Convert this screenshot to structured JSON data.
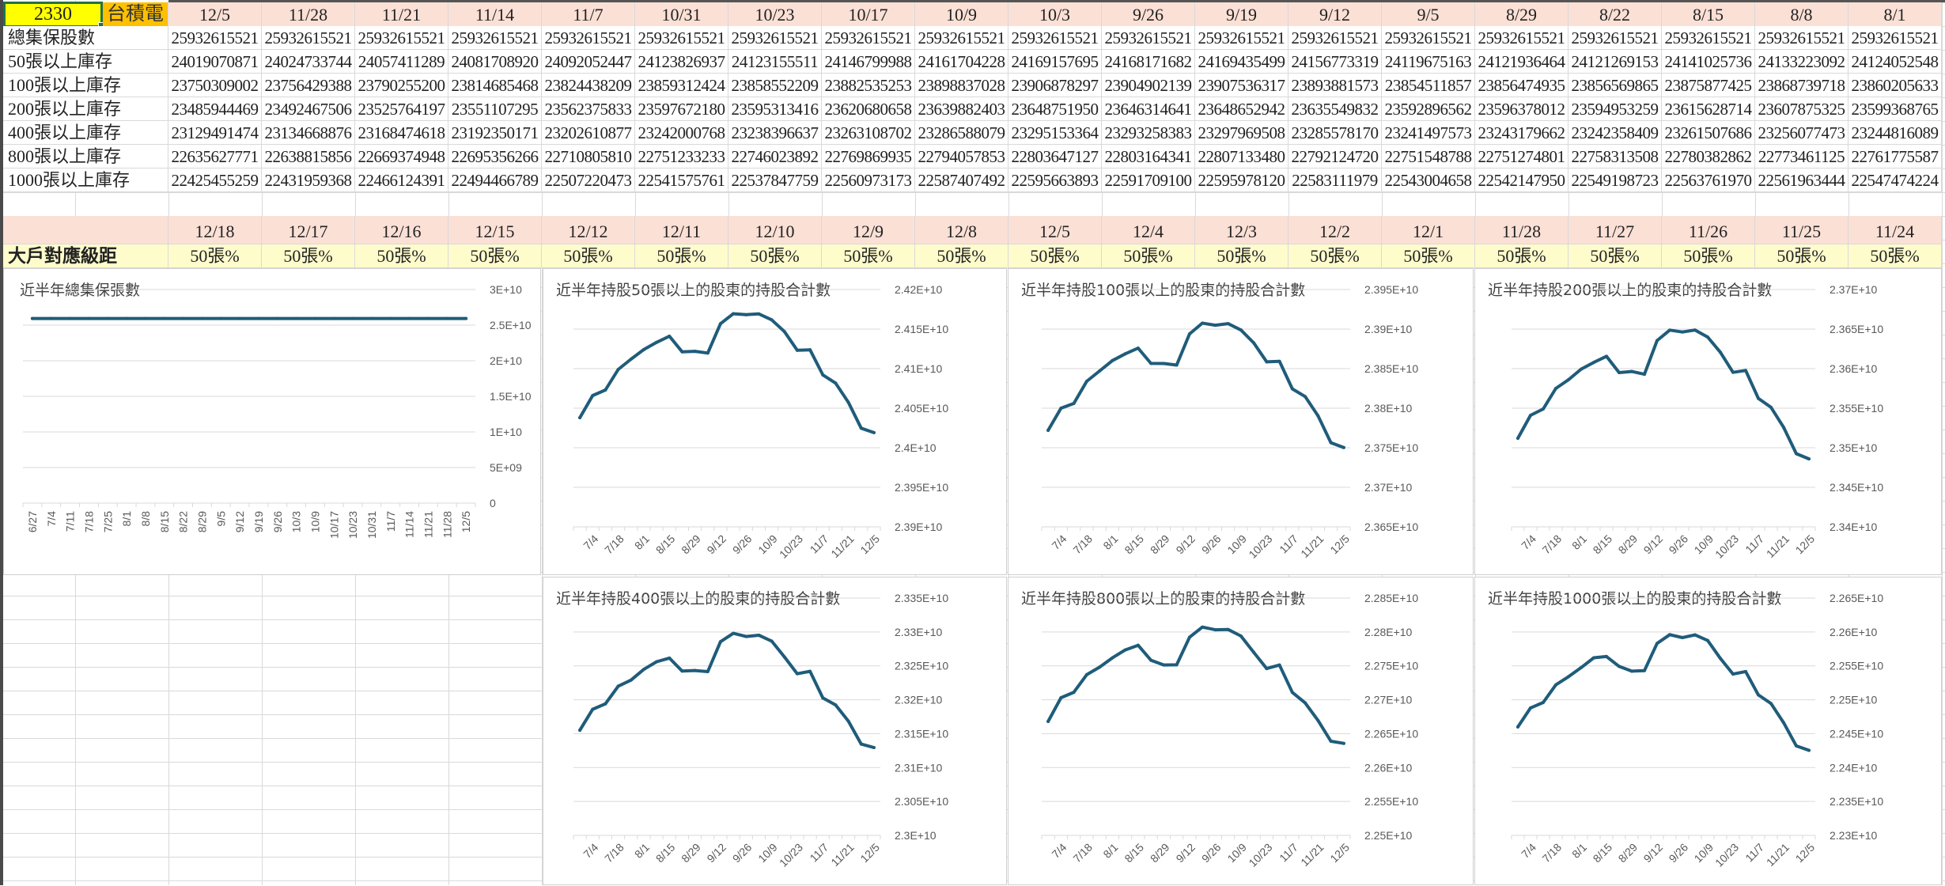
{
  "header": {
    "ticker": "2330",
    "name": "台積電"
  },
  "weekly_table": {
    "dates": [
      "12/5",
      "11/28",
      "11/21",
      "11/14",
      "11/7",
      "10/31",
      "10/23",
      "10/17",
      "10/9",
      "10/3",
      "9/26",
      "9/19",
      "9/12",
      "9/5",
      "8/29",
      "8/22",
      "8/15",
      "8/8",
      "8/1"
    ],
    "rows": [
      {
        "label": "總集保股數",
        "values": [
          "25932615521",
          "25932615521",
          "25932615521",
          "25932615521",
          "25932615521",
          "25932615521",
          "25932615521",
          "25932615521",
          "25932615521",
          "25932615521",
          "25932615521",
          "25932615521",
          "25932615521",
          "25932615521",
          "25932615521",
          "25932615521",
          "25932615521",
          "25932615521",
          "25932615521"
        ]
      },
      {
        "label": "50張以上庫存",
        "values": [
          "24019070871",
          "24024733744",
          "24057411289",
          "24081708920",
          "24092052447",
          "24123826937",
          "24123155511",
          "24146799988",
          "24161704228",
          "24169157695",
          "24168171682",
          "24169435499",
          "24156773319",
          "24119675163",
          "24121936464",
          "24121269153",
          "24141025736",
          "24133223092",
          "24124052548"
        ]
      },
      {
        "label": "100張以上庫存",
        "values": [
          "23750309002",
          "23756429388",
          "23790255200",
          "23814685468",
          "23824438209",
          "23859312424",
          "23858552209",
          "23882535253",
          "23898837028",
          "23906878297",
          "23904902139",
          "23907536317",
          "23893881573",
          "23854511857",
          "23856474935",
          "23856569865",
          "23875877425",
          "23868739718",
          "23860205633"
        ]
      },
      {
        "label": "200張以上庫存",
        "values": [
          "23485944469",
          "23492467506",
          "23525764197",
          "23551107295",
          "23562375833",
          "23597672180",
          "23595313416",
          "23620680658",
          "23639882403",
          "23648751950",
          "23646314641",
          "23648652942",
          "23635549832",
          "23592896562",
          "23596378012",
          "23594953259",
          "23615628714",
          "23607875325",
          "23599368765"
        ]
      },
      {
        "label": "400張以上庫存",
        "values": [
          "23129491474",
          "23134668876",
          "23168474618",
          "23192350171",
          "23202610877",
          "23242000768",
          "23238396637",
          "23263108702",
          "23286588079",
          "23295153364",
          "23293258383",
          "23297969508",
          "23285578170",
          "23241497573",
          "23243179662",
          "23242358409",
          "23261507686",
          "23256077473",
          "23244816089"
        ]
      },
      {
        "label": "800張以上庫存",
        "values": [
          "22635627771",
          "22638815856",
          "22669374948",
          "22695356266",
          "22710805810",
          "22751233233",
          "22746023892",
          "22769869935",
          "22794057853",
          "22803647127",
          "22803164341",
          "22807133480",
          "22792124720",
          "22751548788",
          "22751274801",
          "22758313508",
          "22780382862",
          "22773461125",
          "22761775587"
        ]
      },
      {
        "label": "1000張以上庫存",
        "values": [
          "22425455259",
          "22431959368",
          "22466124391",
          "22494466789",
          "22507220473",
          "22541575761",
          "22537847759",
          "22560973173",
          "22587407492",
          "22595663893",
          "22591709100",
          "22595978120",
          "22583111979",
          "22543004658",
          "22542147950",
          "22549198723",
          "22563761970",
          "22561963444",
          "22547474224"
        ]
      }
    ]
  },
  "daily_header": {
    "dates": [
      "12/18",
      "12/17",
      "12/16",
      "12/15",
      "12/12",
      "12/11",
      "12/10",
      "12/9",
      "12/8",
      "12/5",
      "12/4",
      "12/3",
      "12/2",
      "12/1",
      "11/28",
      "11/27",
      "11/26",
      "11/25",
      "11/24"
    ],
    "row_label": "大戶對應級距",
    "values": [
      "50張%",
      "50張%",
      "50張%",
      "50張%",
      "50張%",
      "50張%",
      "50張%",
      "50張%",
      "50張%",
      "50張%",
      "50張%",
      "50張%",
      "50張%",
      "50張%",
      "50張%",
      "50張%",
      "50張%",
      "50張%",
      "50張%"
    ]
  },
  "colors": {
    "line": "#1f5c7a",
    "date_header_bg": "#fbe0d6",
    "ticker_bg": "#ffff00",
    "name_bg": "#ffc000",
    "level_row_bg": "#fffccc"
  },
  "chart_data": [
    {
      "type": "line",
      "title": "近半年總集保張數",
      "categories": [
        "6/27",
        "7/4",
        "7/11",
        "7/18",
        "7/25",
        "8/1",
        "8/8",
        "8/15",
        "8/22",
        "8/29",
        "9/5",
        "9/12",
        "9/19",
        "9/26",
        "10/3",
        "10/9",
        "10/17",
        "10/23",
        "10/31",
        "11/7",
        "11/14",
        "11/21",
        "11/28",
        "12/5"
      ],
      "values": [
        25932615521,
        25932615521,
        25932615521,
        25932615521,
        25932615521,
        25932615521,
        25932615521,
        25932615521,
        25932615521,
        25932615521,
        25932615521,
        25932615521,
        25932615521,
        25932615521,
        25932615521,
        25932615521,
        25932615521,
        25932615521,
        25932615521,
        25932615521,
        25932615521,
        25932615521,
        25932615521,
        25932615521
      ],
      "ylim": [
        0,
        30000000000
      ],
      "yticks": [
        "3E+10",
        "2.5E+10",
        "2E+10",
        "1.5E+10",
        "1E+10",
        "5E+09",
        "0"
      ],
      "xtick_labels": [
        "6/27",
        "7/4",
        "7/11",
        "7/18",
        "7/25",
        "8/1",
        "8/8",
        "8/15",
        "8/22",
        "8/29",
        "9/5",
        "9/12",
        "9/19",
        "9/26",
        "10/3",
        "10/9",
        "10/17",
        "10/23",
        "10/31",
        "11/7",
        "11/14",
        "11/21",
        "11/28",
        "12/5"
      ],
      "grid": true,
      "legend": "none"
    },
    {
      "type": "line",
      "title": "近半年持股50張以上的股東的持股合計數",
      "categories": [
        "6/27",
        "7/4",
        "7/11",
        "7/18",
        "7/25",
        "8/1",
        "8/8",
        "8/15",
        "8/22",
        "8/29",
        "9/5",
        "9/12",
        "9/19",
        "9/26",
        "10/3",
        "10/9",
        "10/17",
        "10/23",
        "10/31",
        "11/7",
        "11/14",
        "11/21",
        "11/28",
        "12/5"
      ],
      "values": [
        24038000000,
        24066000000,
        24073000000,
        24099000000,
        24112000000,
        24124052548,
        24133223092,
        24141025736,
        24121269153,
        24121936464,
        24119675163,
        24156773319,
        24169435499,
        24168171682,
        24169157695,
        24161704228,
        24146799988,
        24123155511,
        24123826937,
        24092052447,
        24081708920,
        24057411289,
        24024733744,
        24019070871
      ],
      "ylim": [
        23900000000,
        24200000000
      ],
      "yticks": [
        "2.42E+10",
        "2.415E+10",
        "2.41E+10",
        "2.405E+10",
        "2.4E+10",
        "2.395E+10",
        "2.39E+10"
      ],
      "xtick_labels": [
        "7/4",
        "7/18",
        "8/1",
        "8/15",
        "8/29",
        "9/12",
        "9/26",
        "10/9",
        "10/23",
        "11/7",
        "11/21",
        "12/5"
      ],
      "grid": true,
      "legend": "none"
    },
    {
      "type": "line",
      "title": "近半年持股100張以上的股東的持股合計數",
      "categories": [
        "6/27",
        "7/4",
        "7/11",
        "7/18",
        "7/25",
        "8/1",
        "8/8",
        "8/15",
        "8/22",
        "8/29",
        "9/5",
        "9/12",
        "9/19",
        "9/26",
        "10/3",
        "10/9",
        "10/17",
        "10/23",
        "10/31",
        "11/7",
        "11/14",
        "11/21",
        "11/28",
        "12/5"
      ],
      "values": [
        23772000000,
        23800000000,
        23806000000,
        23834000000,
        23847000000,
        23860205633,
        23868739718,
        23875877425,
        23856569865,
        23856474935,
        23854511857,
        23893881573,
        23907536317,
        23904902139,
        23906878297,
        23898837028,
        23882535253,
        23858552209,
        23859312424,
        23824438209,
        23814685468,
        23790255200,
        23756429388,
        23750309002
      ],
      "ylim": [
        23650000000,
        23950000000
      ],
      "yticks": [
        "2.395E+10",
        "2.39E+10",
        "2.385E+10",
        "2.38E+10",
        "2.375E+10",
        "2.37E+10",
        "2.365E+10"
      ],
      "xtick_labels": [
        "7/4",
        "7/18",
        "8/1",
        "8/15",
        "8/29",
        "9/12",
        "9/26",
        "10/9",
        "10/23",
        "11/7",
        "11/21",
        "12/5"
      ],
      "grid": true,
      "legend": "none"
    },
    {
      "type": "line",
      "title": "近半年持股200張以上的股東的持股合計數",
      "categories": [
        "6/27",
        "7/4",
        "7/11",
        "7/18",
        "7/25",
        "8/1",
        "8/8",
        "8/15",
        "8/22",
        "8/29",
        "9/5",
        "9/12",
        "9/19",
        "9/26",
        "10/3",
        "10/9",
        "10/17",
        "10/23",
        "10/31",
        "11/7",
        "11/14",
        "11/21",
        "11/28",
        "12/5"
      ],
      "values": [
        23512000000,
        23541000000,
        23549000000,
        23575000000,
        23586000000,
        23599368765,
        23607875325,
        23615628714,
        23594953259,
        23596378012,
        23592896562,
        23635549832,
        23648652942,
        23646314641,
        23648751950,
        23639882403,
        23620680658,
        23595313416,
        23597672180,
        23562375833,
        23551107295,
        23525764197,
        23492467506,
        23485944469
      ],
      "ylim": [
        23400000000,
        23700000000
      ],
      "yticks": [
        "2.37E+10",
        "2.365E+10",
        "2.36E+10",
        "2.355E+10",
        "2.35E+10",
        "2.345E+10",
        "2.34E+10"
      ],
      "xtick_labels": [
        "7/4",
        "7/18",
        "8/1",
        "8/15",
        "8/29",
        "9/12",
        "9/26",
        "10/9",
        "10/23",
        "11/7",
        "11/21",
        "12/5"
      ],
      "grid": true,
      "legend": "none"
    },
    {
      "type": "line",
      "title": "近半年持股400張以上的股東的持股合計數",
      "categories": [
        "6/27",
        "7/4",
        "7/11",
        "7/18",
        "7/25",
        "8/1",
        "8/8",
        "8/15",
        "8/22",
        "8/29",
        "9/5",
        "9/12",
        "9/19",
        "9/26",
        "10/3",
        "10/9",
        "10/17",
        "10/23",
        "10/31",
        "11/7",
        "11/14",
        "11/21",
        "11/28",
        "12/5"
      ],
      "values": [
        23155000000,
        23186000000,
        23194000000,
        23220000000,
        23229000000,
        23244816089,
        23256077473,
        23261507686,
        23242358409,
        23243179662,
        23241497573,
        23285578170,
        23297969508,
        23293258383,
        23295153364,
        23286588079,
        23263108702,
        23238396637,
        23242000768,
        23202610877,
        23192350171,
        23168474618,
        23134668876,
        23129491474
      ],
      "ylim": [
        23000000000,
        23350000000
      ],
      "yticks": [
        "2.335E+10",
        "2.33E+10",
        "2.325E+10",
        "2.32E+10",
        "2.315E+10",
        "2.31E+10",
        "2.305E+10",
        "2.3E+10"
      ],
      "xtick_labels": [
        "7/4",
        "7/18",
        "8/1",
        "8/15",
        "8/29",
        "9/12",
        "9/26",
        "10/9",
        "10/23",
        "11/7",
        "11/21",
        "12/5"
      ],
      "grid": true,
      "legend": "none"
    },
    {
      "type": "line",
      "title": "近半年持股800張以上的股東的持股合計數",
      "categories": [
        "6/27",
        "7/4",
        "7/11",
        "7/18",
        "7/25",
        "8/1",
        "8/8",
        "8/15",
        "8/22",
        "8/29",
        "9/5",
        "9/12",
        "9/19",
        "9/26",
        "10/3",
        "10/9",
        "10/17",
        "10/23",
        "10/31",
        "11/7",
        "11/14",
        "11/21",
        "11/28",
        "12/5"
      ],
      "values": [
        22668000000,
        22703000000,
        22711000000,
        22737000000,
        22748000000,
        22761775587,
        22773461125,
        22780382862,
        22758313508,
        22751274801,
        22751548788,
        22792124720,
        22807133480,
        22803164341,
        22803647127,
        22794057853,
        22769869935,
        22746023892,
        22751233233,
        22710805810,
        22695356266,
        22669374948,
        22638815856,
        22635627771
      ],
      "ylim": [
        22500000000,
        22850000000
      ],
      "yticks": [
        "2.285E+10",
        "2.28E+10",
        "2.275E+10",
        "2.27E+10",
        "2.265E+10",
        "2.26E+10",
        "2.255E+10",
        "2.25E+10"
      ],
      "xtick_labels": [
        "7/4",
        "7/18",
        "8/1",
        "8/15",
        "8/29",
        "9/12",
        "9/26",
        "10/9",
        "10/23",
        "11/7",
        "11/21",
        "12/5"
      ],
      "grid": true,
      "legend": "none"
    },
    {
      "type": "line",
      "title": "近半年持股1000張以上的股東的持股合計數",
      "categories": [
        "6/27",
        "7/4",
        "7/11",
        "7/18",
        "7/25",
        "8/1",
        "8/8",
        "8/15",
        "8/22",
        "8/29",
        "9/5",
        "9/12",
        "9/19",
        "9/26",
        "10/3",
        "10/9",
        "10/17",
        "10/23",
        "10/31",
        "11/7",
        "11/14",
        "11/21",
        "11/28",
        "12/5"
      ],
      "values": [
        22460000000,
        22488000000,
        22496000000,
        22522000000,
        22534000000,
        22547474224,
        22561963444,
        22563761970,
        22549198723,
        22542147950,
        22543004658,
        22583111979,
        22595978120,
        22591709100,
        22595663893,
        22587407492,
        22560973173,
        22537847759,
        22541575761,
        22507220473,
        22494466789,
        22466124391,
        22431959368,
        22425455259
      ],
      "ylim": [
        22300000000,
        22650000000
      ],
      "yticks": [
        "2.265E+10",
        "2.26E+10",
        "2.255E+10",
        "2.25E+10",
        "2.245E+10",
        "2.24E+10",
        "2.235E+10",
        "2.23E+10"
      ],
      "xtick_labels": [
        "7/4",
        "7/18",
        "8/1",
        "8/15",
        "8/29",
        "9/12",
        "9/26",
        "10/9",
        "10/23",
        "11/7",
        "11/21",
        "12/5"
      ],
      "grid": true,
      "legend": "none"
    }
  ]
}
